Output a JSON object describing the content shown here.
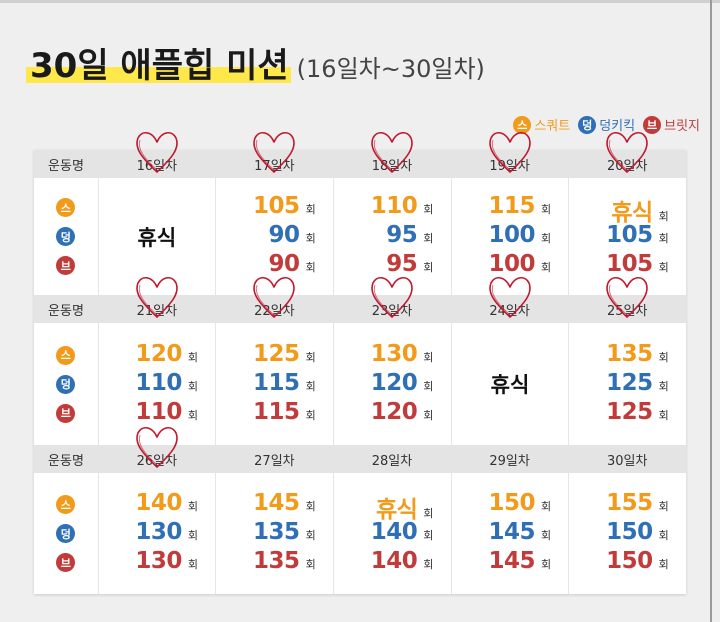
{
  "title": {
    "main": "30일 애플힙 미션",
    "sub": "(16일차~30일차)"
  },
  "legend": [
    {
      "icon": "스",
      "label": "스쿼트",
      "color": "#f29a1a"
    },
    {
      "icon": "덩",
      "label": "덩키킥",
      "color": "#2f6fb6"
    },
    {
      "icon": "브",
      "label": "브릿지",
      "color": "#c23b3b"
    }
  ],
  "exercise_label": "운동명",
  "unit": "회",
  "weeks": [
    {
      "days": [
        {
          "day": "16일차",
          "rest": "휴식"
        },
        {
          "day": "17일차",
          "counts": [
            "105",
            "90",
            "90"
          ]
        },
        {
          "day": "18일차",
          "counts": [
            "110",
            "95",
            "95"
          ]
        },
        {
          "day": "19일차",
          "counts": [
            "115",
            "100",
            "100"
          ]
        },
        {
          "day": "20일차",
          "counts": [
            "휴식",
            "105",
            "105"
          ]
        }
      ]
    },
    {
      "days": [
        {
          "day": "21일차",
          "counts": [
            "120",
            "110",
            "110"
          ]
        },
        {
          "day": "22일차",
          "counts": [
            "125",
            "115",
            "115"
          ]
        },
        {
          "day": "23일차",
          "counts": [
            "130",
            "120",
            "120"
          ]
        },
        {
          "day": "24일차",
          "rest": "휴식"
        },
        {
          "day": "25일차",
          "counts": [
            "135",
            "125",
            "125"
          ]
        }
      ]
    },
    {
      "days": [
        {
          "day": "26일차",
          "counts": [
            "140",
            "130",
            "130"
          ]
        },
        {
          "day": "27일차",
          "counts": [
            "145",
            "135",
            "135"
          ]
        },
        {
          "day": "28일차",
          "counts": [
            "휴식",
            "140",
            "140"
          ]
        },
        {
          "day": "29일차",
          "counts": [
            "150",
            "145",
            "145"
          ]
        },
        {
          "day": "30일차",
          "counts": [
            "155",
            "150",
            "150"
          ]
        }
      ]
    }
  ],
  "completed_marks": [
    "16일차",
    "17일차",
    "18일차",
    "19일차",
    "20일차",
    "21일차",
    "22일차",
    "23일차",
    "24일차",
    "25일차",
    "26일차"
  ],
  "heart_color": "#c0182e"
}
